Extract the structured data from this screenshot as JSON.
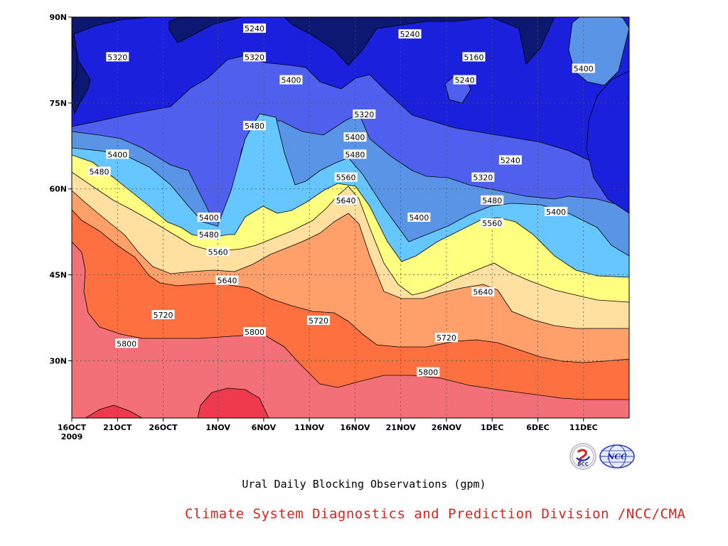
{
  "chart_data": {
    "type": "heatmap",
    "plot_kind": "filled-contour (time-latitude Hovmoller)",
    "title": "Ural Daily Blocking Observations (gpm)",
    "credit": "Climate System Diagnostics and Prediction Division /NCC/CMA",
    "x_ticks": [
      "16OCT",
      "21OCT",
      "26OCT",
      "1NOV",
      "6NOV",
      "11NOV",
      "16NOV",
      "21NOV",
      "26NOV",
      "1DEC",
      "6DEC",
      "11DEC"
    ],
    "x_year": "2009",
    "x_range": [
      "2009-10-16",
      "2009-12-16"
    ],
    "y_ticks": [
      "30N",
      "45N",
      "60N",
      "75N",
      "90N"
    ],
    "y_range": [
      20,
      90
    ],
    "grid": "dotted",
    "levels": [
      5160,
      5240,
      5320,
      5400,
      5480,
      5560,
      5640,
      5720,
      5800,
      5880
    ],
    "level_colors": [
      "#0c1872",
      "#1a20dc",
      "#5060ee",
      "#5a94e6",
      "#66c6ff",
      "#ffff80",
      "#ffe0a0",
      "#ffa06a",
      "#ff7040",
      "#f47078",
      "#ee3a4c"
    ],
    "contour_labels": [
      {
        "value": "5240",
        "date": "2009-11-05",
        "lat": 88
      },
      {
        "value": "5320",
        "date": "2009-10-21",
        "lat": 83
      },
      {
        "value": "5320",
        "date": "2009-11-05",
        "lat": 83
      },
      {
        "value": "5240",
        "date": "2009-11-22",
        "lat": 87
      },
      {
        "value": "5160",
        "date": "2009-11-29",
        "lat": 83
      },
      {
        "value": "5240",
        "date": "2009-11-28",
        "lat": 79
      },
      {
        "value": "5400",
        "date": "2009-12-11",
        "lat": 81
      },
      {
        "value": "5400",
        "date": "2009-11-09",
        "lat": 79
      },
      {
        "value": "5320",
        "date": "2009-11-17",
        "lat": 73
      },
      {
        "value": "5480",
        "date": "2009-11-05",
        "lat": 71
      },
      {
        "value": "5400",
        "date": "2009-11-16",
        "lat": 69
      },
      {
        "value": "5400",
        "date": "2009-10-21",
        "lat": 66
      },
      {
        "value": "5480",
        "date": "2009-11-16",
        "lat": 66
      },
      {
        "value": "5240",
        "date": "2009-12-03",
        "lat": 65
      },
      {
        "value": "5480",
        "date": "2009-10-19",
        "lat": 63
      },
      {
        "value": "5320",
        "date": "2009-11-30",
        "lat": 62
      },
      {
        "value": "5560",
        "date": "2009-11-15",
        "lat": 62
      },
      {
        "value": "5640",
        "date": "2009-11-15",
        "lat": 58
      },
      {
        "value": "5480",
        "date": "2009-12-01",
        "lat": 58
      },
      {
        "value": "5400",
        "date": "2009-12-08",
        "lat": 56
      },
      {
        "value": "5400",
        "date": "2009-10-31",
        "lat": 55
      },
      {
        "value": "5400",
        "date": "2009-11-23",
        "lat": 55
      },
      {
        "value": "5560",
        "date": "2009-12-01",
        "lat": 54
      },
      {
        "value": "5480",
        "date": "2009-10-31",
        "lat": 52
      },
      {
        "value": "5560",
        "date": "2009-11-01",
        "lat": 49
      },
      {
        "value": "5640",
        "date": "2009-11-02",
        "lat": 44
      },
      {
        "value": "5640",
        "date": "2009-11-30",
        "lat": 42
      },
      {
        "value": "5720",
        "date": "2009-10-26",
        "lat": 38
      },
      {
        "value": "5720",
        "date": "2009-11-12",
        "lat": 37
      },
      {
        "value": "5720",
        "date": "2009-11-26",
        "lat": 34
      },
      {
        "value": "5800",
        "date": "2009-11-05",
        "lat": 35
      },
      {
        "value": "5800",
        "date": "2009-10-22",
        "lat": 33
      },
      {
        "value": "5800",
        "date": "2009-11-24",
        "lat": 28
      }
    ]
  },
  "logos": {
    "left_icon": "bcc-logo-icon",
    "left_text": "BCC",
    "right_icon": "ncc-globe-logo-icon",
    "right_text": "NCC"
  }
}
